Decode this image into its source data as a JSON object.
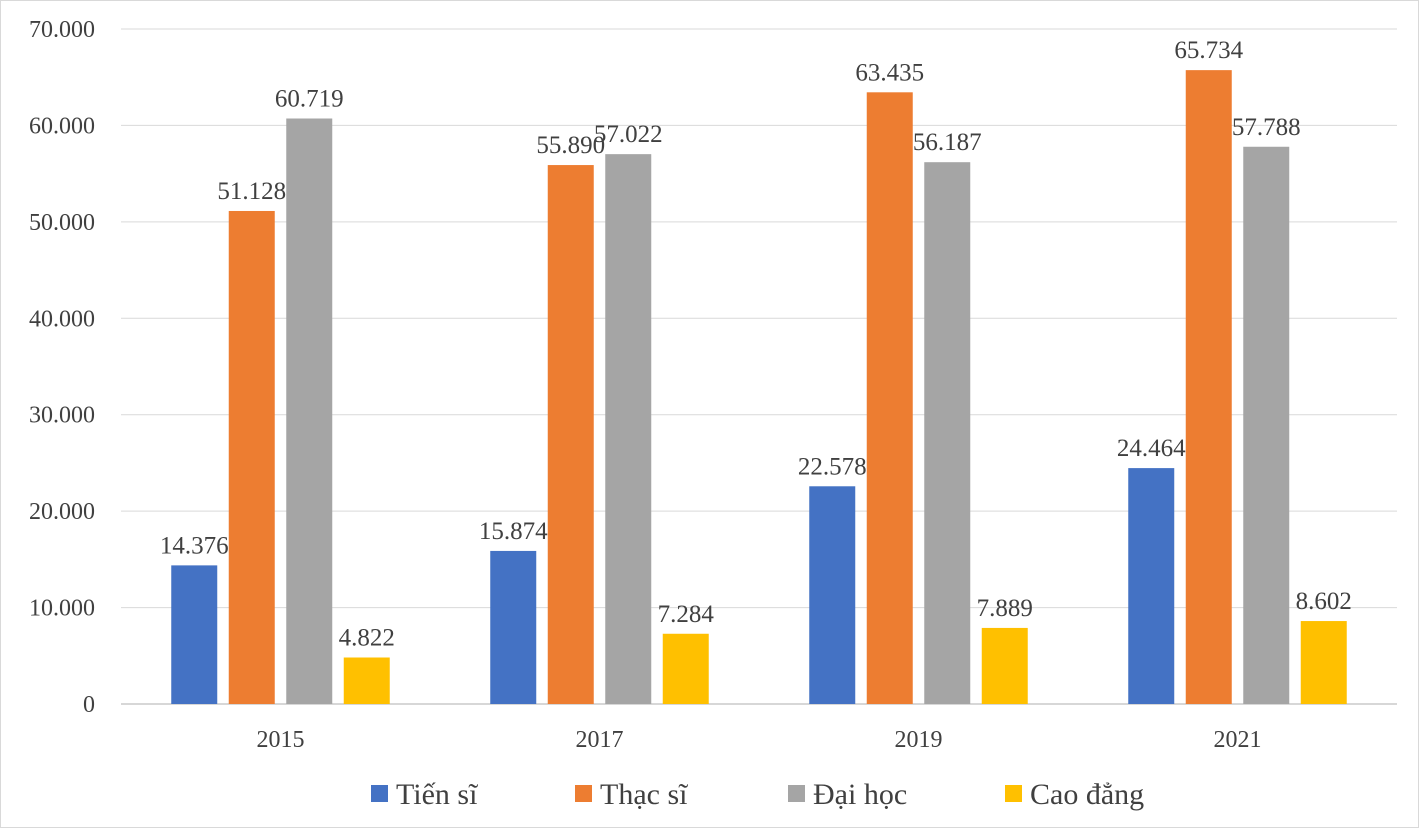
{
  "chart_data": {
    "type": "bar",
    "title": "",
    "xlabel": "",
    "ylabel": "",
    "categories": [
      "2015",
      "2017",
      "2019",
      "2021"
    ],
    "series": [
      {
        "name": "Tiến sĩ",
        "color": "#4472C4",
        "values": [
          14376,
          15874,
          22578,
          24464
        ],
        "labels": [
          "14.376",
          "15.874",
          "22.578",
          "24.464"
        ]
      },
      {
        "name": "Thạc sĩ",
        "color": "#ED7D31",
        "values": [
          51128,
          55890,
          63435,
          65734
        ],
        "labels": [
          "51.128",
          "55.890",
          "63.435",
          "65.734"
        ]
      },
      {
        "name": "Đại học",
        "color": "#A5A5A5",
        "values": [
          60719,
          57022,
          56187,
          57788
        ],
        "labels": [
          "60.719",
          "57.022",
          "56.187",
          "57.788"
        ]
      },
      {
        "name": "Cao đẳng",
        "color": "#FFC000",
        "values": [
          4822,
          7284,
          7889,
          8602
        ],
        "labels": [
          "4.822",
          "7.284",
          "7.889",
          "8.602"
        ]
      }
    ],
    "ylim": [
      0,
      70000
    ],
    "yticks": [
      0,
      10000,
      20000,
      30000,
      40000,
      50000,
      60000,
      70000
    ],
    "ytick_labels": [
      "0",
      "10.000",
      "20.000",
      "30.000",
      "40.000",
      "50.000",
      "60.000",
      "70.000"
    ],
    "grid": true,
    "legend_position": "bottom"
  }
}
